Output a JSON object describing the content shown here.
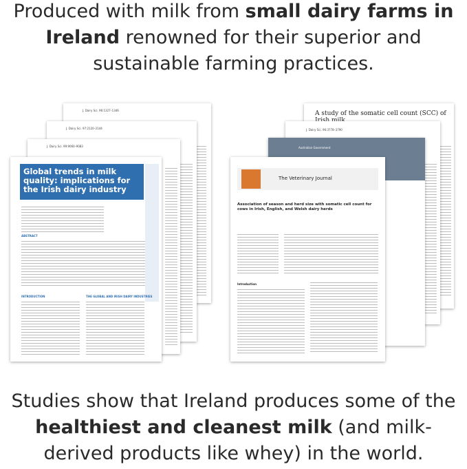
{
  "header": {
    "parts": [
      "Produced with milk from ",
      "small dairy farms in Ireland",
      " renowned for their superior and sustainable farming practices."
    ]
  },
  "footer": {
    "parts": [
      "Studies show that Ireland produces some of the ",
      "healthiest and cleanest milk",
      " (and milk-derived products like whey) in the world."
    ]
  },
  "left_papers": {
    "citations": [
      "J. Dairy Sci. 96:1327–1346",
      "J. Dairy Sci. 97:2120–2144",
      "J. Dairy Sci. 99:9060–9083"
    ],
    "main_title": "Global trends in milk quality: implications for the Irish dairy industry",
    "main_section": "ABSTRACT",
    "main_intro": "INTRODUCTION",
    "main_section2": "THE GLOBAL AND IRISH DAIRY INDUSTRIES"
  },
  "right_papers": {
    "back_title": "A study of the somatic cell count (SCC) of Irish milk",
    "gov": "Australian Government",
    "citation": "J. Dairy Sci. 96:3778–3790",
    "journal": "The Veterinary Journal",
    "article_title": "Association of season and herd size with somatic cell count for cows in Irish, English, and Welsh dairy herds",
    "intro": "Introduction"
  }
}
